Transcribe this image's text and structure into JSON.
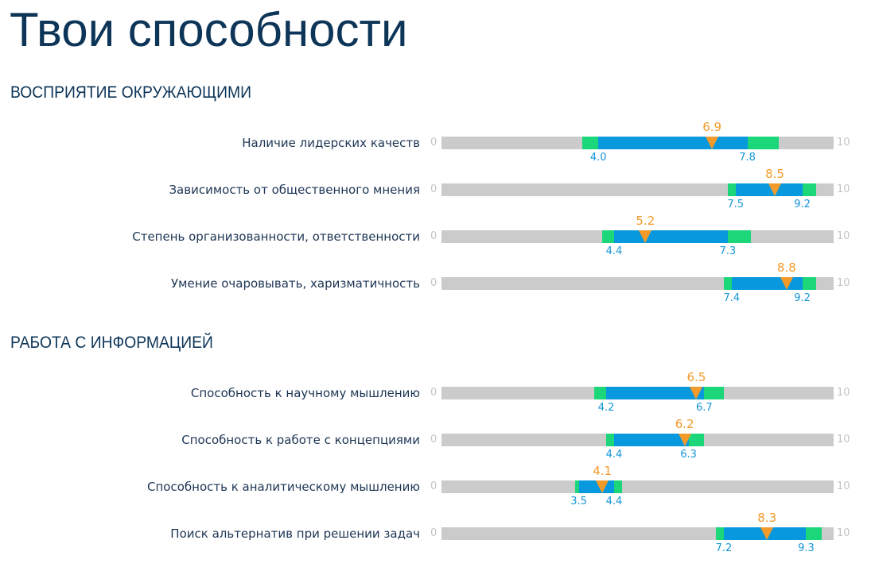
{
  "page": {
    "title": "Твои способности"
  },
  "scale": {
    "min": "0",
    "max": "10"
  },
  "colors": {
    "track": "#cbcbcb",
    "outer_band": "#1cd67a",
    "inner_band": "#0898de",
    "marker": "#f39a2a",
    "title": "#0d3558"
  },
  "sections": [
    {
      "title": "ВОСПРИЯТИЕ ОКРУЖАЮЩИМИ",
      "rows": [
        {
          "label": "Наличие лидерских качеств",
          "score": 6.9,
          "range_lo": 4.0,
          "range_hi": 7.8,
          "outer_lo": 3.6,
          "outer_hi": 8.6,
          "score_text": "6.9",
          "lo_text": "4.0",
          "hi_text": "7.8"
        },
        {
          "label": "Зависимость от общественного мнения",
          "score": 8.5,
          "range_lo": 7.5,
          "range_hi": 9.2,
          "outer_lo": 7.3,
          "outer_hi": 9.55,
          "score_text": "8.5",
          "lo_text": "7.5",
          "hi_text": "9.2"
        },
        {
          "label": "Степень организованности, ответственности",
          "score": 5.2,
          "range_lo": 4.4,
          "range_hi": 7.3,
          "outer_lo": 4.1,
          "outer_hi": 7.9,
          "score_text": "5.2",
          "lo_text": "4.4",
          "hi_text": "7.3"
        },
        {
          "label": "Умение очаровывать, харизматичность",
          "score": 8.8,
          "range_lo": 7.4,
          "range_hi": 9.2,
          "outer_lo": 7.2,
          "outer_hi": 9.55,
          "score_text": "8.8",
          "lo_text": "7.4",
          "hi_text": "9.2"
        }
      ]
    },
    {
      "title": "РАБОТА С ИНФОРМАЦИЕЙ",
      "rows": [
        {
          "label": "Способность к научному мышлению",
          "score": 6.5,
          "range_lo": 4.2,
          "range_hi": 6.7,
          "outer_lo": 3.9,
          "outer_hi": 7.2,
          "score_text": "6.5",
          "lo_text": "4.2",
          "hi_text": "6.7"
        },
        {
          "label": "Способность к работе с концепциями",
          "score": 6.2,
          "range_lo": 4.4,
          "range_hi": 6.3,
          "outer_lo": 4.2,
          "outer_hi": 6.7,
          "score_text": "6.2",
          "lo_text": "4.4",
          "hi_text": "6.3"
        },
        {
          "label": "Способность к аналитическому мышлению",
          "score": 4.1,
          "range_lo": 3.5,
          "range_hi": 4.4,
          "outer_lo": 3.4,
          "outer_hi": 4.6,
          "score_text": "4.1",
          "lo_text": "3.5",
          "hi_text": "4.4"
        },
        {
          "label": "Поиск альтернатив при решении задач",
          "score": 8.3,
          "range_lo": 7.2,
          "range_hi": 9.3,
          "outer_lo": 7.0,
          "outer_hi": 9.7,
          "score_text": "8.3",
          "lo_text": "7.2",
          "hi_text": "9.3"
        }
      ]
    }
  ]
}
